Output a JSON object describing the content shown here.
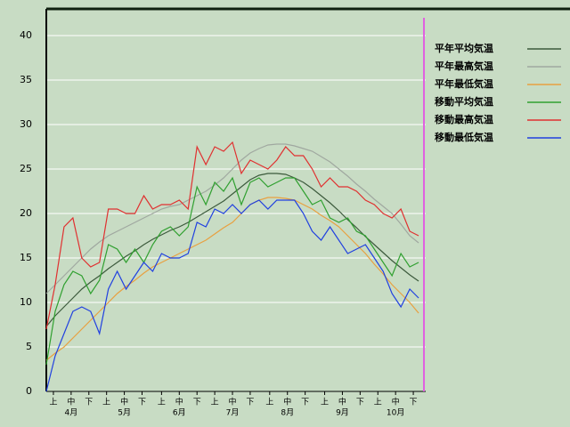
{
  "chart_data": {
    "type": "line",
    "x": [
      0,
      5,
      10,
      15,
      20,
      25,
      30,
      35,
      40,
      45,
      50,
      55,
      60,
      65,
      70,
      75,
      80,
      85,
      90,
      95,
      100,
      105,
      110,
      115,
      120,
      125,
      130,
      135,
      140,
      145,
      150,
      155,
      160,
      165,
      170,
      175,
      180,
      185,
      190,
      195,
      200,
      205,
      210
    ],
    "xlim": [
      0,
      214
    ],
    "xticks": [
      {
        "value": 4,
        "label": "上"
      },
      {
        "value": 14,
        "label": "中"
      },
      {
        "value": 24,
        "label": "下"
      },
      {
        "value": 34,
        "label": "上"
      },
      {
        "value": 44,
        "label": "中"
      },
      {
        "value": 54,
        "label": "下"
      },
      {
        "value": 65,
        "label": "上"
      },
      {
        "value": 75,
        "label": "中"
      },
      {
        "value": 85,
        "label": "下"
      },
      {
        "value": 95,
        "label": "上"
      },
      {
        "value": 105,
        "label": "中"
      },
      {
        "value": 115,
        "label": "下"
      },
      {
        "value": 126,
        "label": "上"
      },
      {
        "value": 136,
        "label": "中"
      },
      {
        "value": 146,
        "label": "下"
      },
      {
        "value": 157,
        "label": "上"
      },
      {
        "value": 167,
        "label": "中"
      },
      {
        "value": 177,
        "label": "下"
      },
      {
        "value": 187,
        "label": "上"
      },
      {
        "value": 197,
        "label": "中"
      },
      {
        "value": 207,
        "label": "下"
      }
    ],
    "month_ticks": [
      {
        "value": 14,
        "label": "4月"
      },
      {
        "value": 44,
        "label": "5月"
      },
      {
        "value": 75,
        "label": "6月"
      },
      {
        "value": 105,
        "label": "7月"
      },
      {
        "value": 136,
        "label": "8月"
      },
      {
        "value": 167,
        "label": "9月"
      },
      {
        "value": 197,
        "label": "10月"
      }
    ],
    "ylim": [
      0,
      43
    ],
    "yticks": [
      0,
      5,
      10,
      15,
      20,
      25,
      30,
      35,
      40
    ],
    "grid": true,
    "today_marker": {
      "x": 213,
      "color": "#e060e0"
    },
    "series": [
      {
        "name": "平年平均気温",
        "color": "#3c5a3c",
        "values": [
          7.3,
          8.5,
          9.5,
          10.5,
          11.5,
          12.3,
          13.0,
          13.8,
          14.5,
          15.2,
          15.8,
          16.5,
          17.1,
          17.6,
          18.1,
          18.5,
          19.0,
          19.6,
          20.2,
          20.8,
          21.4,
          22.2,
          23.0,
          23.8,
          24.3,
          24.5,
          24.5,
          24.4,
          24.0,
          23.5,
          22.8,
          22.0,
          21.2,
          20.3,
          19.3,
          18.4,
          17.4,
          16.5,
          15.6,
          14.7,
          13.9,
          13.1,
          12.4
        ]
      },
      {
        "name": "平年最高気温",
        "color": "#a0a8a0",
        "values": [
          11.0,
          12.0,
          13.0,
          14.0,
          15.0,
          16.0,
          16.8,
          17.5,
          18.0,
          18.5,
          19.0,
          19.5,
          20.0,
          20.5,
          20.8,
          21.0,
          21.5,
          22.0,
          22.5,
          23.2,
          24.0,
          25.0,
          26.0,
          26.8,
          27.3,
          27.7,
          27.8,
          27.8,
          27.6,
          27.3,
          27.0,
          26.4,
          25.8,
          25.0,
          24.2,
          23.3,
          22.5,
          21.6,
          20.8,
          20.0,
          18.8,
          17.5,
          16.7
        ]
      },
      {
        "name": "平年最低気温",
        "color": "#e8a040",
        "values": [
          3.5,
          4.3,
          5.0,
          6.0,
          7.0,
          8.0,
          9.0,
          10.0,
          11.0,
          11.8,
          12.5,
          13.3,
          14.0,
          14.5,
          15.0,
          15.5,
          16.0,
          16.5,
          17.0,
          17.7,
          18.4,
          19.0,
          20.0,
          21.0,
          21.5,
          21.8,
          21.8,
          21.7,
          21.5,
          21.0,
          20.5,
          19.8,
          19.2,
          18.5,
          17.5,
          16.5,
          15.5,
          14.3,
          13.2,
          12.0,
          11.0,
          10.0,
          8.8
        ]
      },
      {
        "name": "移動平均気温",
        "color": "#30a030",
        "values": [
          3.0,
          9.0,
          12.0,
          13.5,
          13.0,
          11.0,
          12.5,
          16.5,
          16.0,
          14.5,
          16.0,
          14.5,
          16.5,
          18.0,
          18.5,
          17.5,
          18.5,
          23.0,
          21.0,
          23.5,
          22.5,
          24.0,
          21.0,
          23.5,
          24.0,
          23.0,
          23.5,
          24.0,
          24.0,
          22.5,
          21.0,
          21.5,
          19.5,
          19.0,
          19.5,
          18.0,
          17.5,
          16.0,
          14.5,
          13.0,
          15.5,
          14.0,
          14.5
        ]
      },
      {
        "name": "移動最高気温",
        "color": "#e03030",
        "values": [
          7.0,
          12.0,
          18.5,
          19.5,
          15.0,
          14.0,
          14.5,
          20.5,
          20.5,
          20.0,
          20.0,
          22.0,
          20.5,
          21.0,
          21.0,
          21.5,
          20.5,
          27.5,
          25.5,
          27.5,
          27.0,
          28.0,
          24.5,
          26.0,
          25.5,
          25.0,
          26.0,
          27.5,
          26.5,
          26.5,
          25.0,
          23.0,
          24.0,
          23.0,
          23.0,
          22.5,
          21.5,
          21.0,
          20.0,
          19.5,
          20.5,
          18.0,
          17.5
        ]
      },
      {
        "name": "移動最低気温",
        "color": "#2040e0",
        "values": [
          0.0,
          4.0,
          6.5,
          9.0,
          9.5,
          9.0,
          6.5,
          11.5,
          13.5,
          11.5,
          13.0,
          14.5,
          13.5,
          15.5,
          15.0,
          15.0,
          15.5,
          19.0,
          18.5,
          20.5,
          20.0,
          21.0,
          20.0,
          21.0,
          21.5,
          20.5,
          21.5,
          21.5,
          21.5,
          20.0,
          18.0,
          17.0,
          18.5,
          17.0,
          15.5,
          16.0,
          16.5,
          15.0,
          13.5,
          11.0,
          9.5,
          11.5,
          10.5
        ]
      }
    ]
  }
}
